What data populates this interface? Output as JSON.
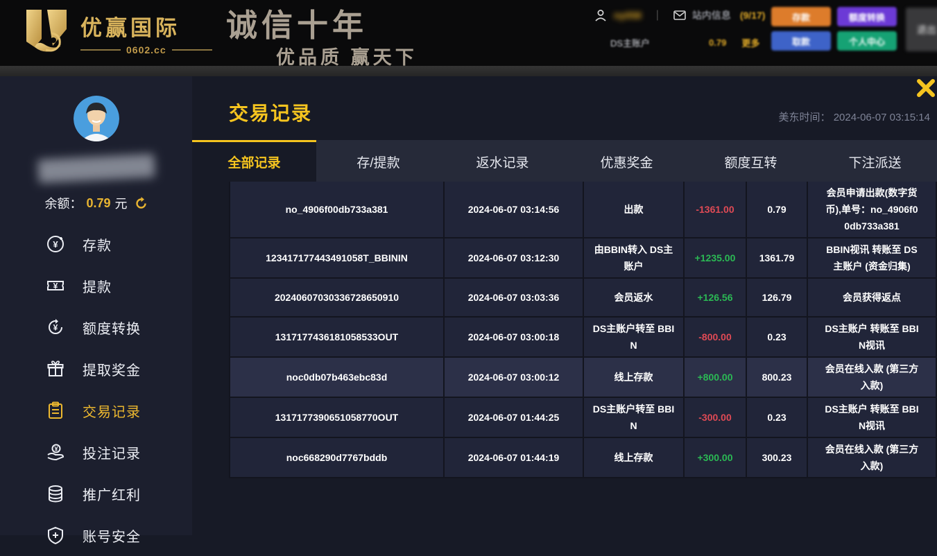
{
  "header": {
    "brand": "优赢国际",
    "brand_domain": "0602.cc",
    "slogan_line1": "诚信十年",
    "slogan_line2": "优品质  赢天下",
    "user": {
      "username_masked": "ny058",
      "separator": "|",
      "messages_label": "站内信息",
      "messages_count": "(9/17)",
      "account_label": "DS主账户",
      "account_balance": "0.79",
      "more_label": "更多"
    },
    "buttons": {
      "deposit": "存款",
      "quota_transfer": "额度转换",
      "withdraw": "取款",
      "personal_center": "个人中心",
      "logout": "退出"
    }
  },
  "sidebar": {
    "balance_label": "余额：",
    "balance_value": "0.79",
    "balance_unit": "元",
    "menu": [
      {
        "icon": "deposit-icon",
        "label": "存款",
        "active": false
      },
      {
        "icon": "withdraw-icon",
        "label": "提款",
        "active": false
      },
      {
        "icon": "transfer-icon",
        "label": "额度转换",
        "active": false
      },
      {
        "icon": "bonus-icon",
        "label": "提取奖金",
        "active": false
      },
      {
        "icon": "records-icon",
        "label": "交易记录",
        "active": true
      },
      {
        "icon": "bets-icon",
        "label": "投注记录",
        "active": false
      },
      {
        "icon": "referral-icon",
        "label": "推广红利",
        "active": false
      },
      {
        "icon": "security-icon",
        "label": "账号安全",
        "active": false
      }
    ]
  },
  "main": {
    "title": "交易记录",
    "timezone_label": "美东时间：",
    "timestamp": "2024-06-07 03:15:14",
    "tabs": [
      {
        "label": "全部记录",
        "active": true
      },
      {
        "label": "存/提款",
        "active": false
      },
      {
        "label": "返水记录",
        "active": false
      },
      {
        "label": "优惠奖金",
        "active": false
      },
      {
        "label": "额度互转",
        "active": false
      },
      {
        "label": "下注派送",
        "active": false
      }
    ],
    "table": {
      "rows": [
        {
          "order": "no_4906f00db733a381",
          "time": "2024-06-07 03:14:56",
          "type": "出款",
          "amount": "-1361.00",
          "trend": "neg",
          "balance": "0.79",
          "note": "会员申请出款(数字货币),单号：no_4906f00db733a381",
          "highlight": false
        },
        {
          "order": "123417177443491058T_BBININ",
          "time": "2024-06-07 03:12:30",
          "type": "由BBIN转入 DS主账户",
          "amount": "+1235.00",
          "trend": "pos",
          "balance": "1361.79",
          "note": "BBIN视讯 转账至 DS主账户 (资金归集)",
          "highlight": false
        },
        {
          "order": "20240607030336728650910",
          "time": "2024-06-07 03:03:36",
          "type": "会员返水",
          "amount": "+126.56",
          "trend": "pos",
          "balance": "126.79",
          "note": "会员获得返点",
          "highlight": false
        },
        {
          "order": "1317177436181058533OUT",
          "time": "2024-06-07 03:00:18",
          "type": "DS主账户转至 BBIN",
          "amount": "-800.00",
          "trend": "neg",
          "balance": "0.23",
          "note": "DS主账户 转账至 BBIN视讯",
          "highlight": false
        },
        {
          "order": "noc0db07b463ebc83d",
          "time": "2024-06-07 03:00:12",
          "type": "线上存款",
          "amount": "+800.00",
          "trend": "pos",
          "balance": "800.23",
          "note": "会员在线入款 (第三方入款)",
          "highlight": true
        },
        {
          "order": "1317177390651058770OUT",
          "time": "2024-06-07 01:44:25",
          "type": "DS主账户转至 BBIN",
          "amount": "-300.00",
          "trend": "neg",
          "balance": "0.23",
          "note": "DS主账户 转账至 BBIN视讯",
          "highlight": false
        },
        {
          "order": "noc668290d7767bddb",
          "time": "2024-06-07 01:44:19",
          "type": "线上存款",
          "amount": "+300.00",
          "trend": "pos",
          "balance": "300.23",
          "note": "会员在线入款 (第三方入款)",
          "highlight": false
        }
      ]
    }
  }
}
